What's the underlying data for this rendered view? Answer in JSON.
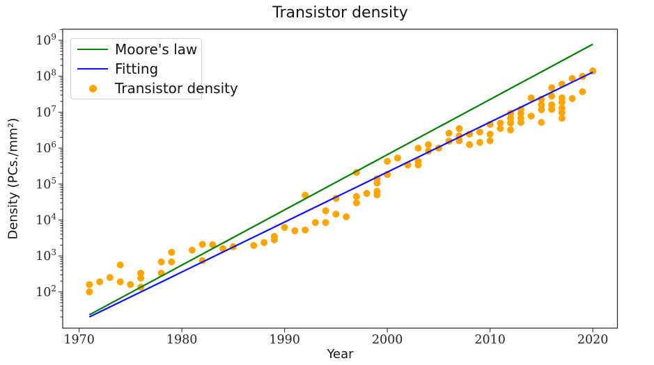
{
  "figure": {
    "title": "Transistor density",
    "xlabel": "Year",
    "ylabel": "Density (PCs./mm²)"
  },
  "legend": {
    "items": [
      {
        "label": "Moore's law",
        "type": "line",
        "color": "#008000"
      },
      {
        "label": "Fitting",
        "type": "line",
        "color": "#0f0fff"
      },
      {
        "label": "Transistor density",
        "type": "dot",
        "color": "#ffa500"
      }
    ]
  },
  "chart_data": {
    "type": "scatter",
    "title": "Transistor density",
    "xlabel": "Year",
    "ylabel": "Density (PCs./mm²)",
    "grid": false,
    "legend_position": "upper-left",
    "x_axis": {
      "ticks": [
        1970,
        1980,
        1990,
        2000,
        2010,
        2020
      ],
      "range": [
        1968.4,
        2022.4
      ]
    },
    "y_axis": {
      "scale": "log",
      "tick_exponents": [
        2,
        3,
        4,
        5,
        6,
        7,
        8,
        9
      ],
      "range_exponents": [
        0.99,
        9.31
      ]
    },
    "series": [
      {
        "name": "Moore's law",
        "id": "moores-law",
        "type": "line",
        "color": "#008000",
        "points": [
          [
            1971,
            23
          ],
          [
            2020,
            780000000
          ]
        ]
      },
      {
        "name": "Fitting",
        "id": "fitting",
        "type": "line",
        "color": "#0f0fff",
        "points": [
          [
            1971,
            20
          ],
          [
            2020,
            130000000
          ]
        ]
      },
      {
        "name": "Transistor density",
        "id": "transistor-density",
        "type": "scatter",
        "color": "#ffa500",
        "points": [
          [
            1971,
            100
          ],
          [
            1971,
            160
          ],
          [
            1972,
            190
          ],
          [
            1973,
            250
          ],
          [
            1974,
            560
          ],
          [
            1974,
            190
          ],
          [
            1975,
            160
          ],
          [
            1976,
            330
          ],
          [
            1976,
            240
          ],
          [
            1976,
            135
          ],
          [
            1978,
            330
          ],
          [
            1978,
            680
          ],
          [
            1979,
            1260
          ],
          [
            1979,
            680
          ],
          [
            1981,
            1450
          ],
          [
            1982,
            2100
          ],
          [
            1982,
            740
          ],
          [
            1983,
            2050
          ],
          [
            1984,
            1600
          ],
          [
            1985,
            1800
          ],
          [
            1987,
            1950
          ],
          [
            1988,
            2350
          ],
          [
            1989,
            3500
          ],
          [
            1989,
            2800
          ],
          [
            1990,
            6200
          ],
          [
            1991,
            5000
          ],
          [
            1992,
            5250
          ],
          [
            1992,
            49000
          ],
          [
            1993,
            8500
          ],
          [
            1994,
            18000
          ],
          [
            1994,
            8500
          ],
          [
            1995,
            14500
          ],
          [
            1995,
            40000
          ],
          [
            1996,
            12300
          ],
          [
            1997,
            45000
          ],
          [
            1997,
            30000
          ],
          [
            1997,
            210000
          ],
          [
            1998,
            55000
          ],
          [
            1999,
            140000
          ],
          [
            1999,
            107000
          ],
          [
            1999,
            63000
          ],
          [
            1999,
            50000
          ],
          [
            2000,
            430000
          ],
          [
            2000,
            185000
          ],
          [
            2001,
            530000
          ],
          [
            2002,
            340000
          ],
          [
            2003,
            430000
          ],
          [
            2003,
            340000
          ],
          [
            2003,
            1000000
          ],
          [
            2004,
            1250000
          ],
          [
            2004,
            830000
          ],
          [
            2005,
            1000000
          ],
          [
            2006,
            2600000
          ],
          [
            2006,
            1560000
          ],
          [
            2007,
            3500000
          ],
          [
            2007,
            2200000
          ],
          [
            2007,
            1600000
          ],
          [
            2008,
            2450000
          ],
          [
            2008,
            1250000
          ],
          [
            2009,
            2800000
          ],
          [
            2009,
            1440000
          ],
          [
            2010,
            4600000
          ],
          [
            2010,
            2450000
          ],
          [
            2010,
            1600000
          ],
          [
            2011,
            5000000
          ],
          [
            2011,
            3500000
          ],
          [
            2012,
            9300000
          ],
          [
            2012,
            6800000
          ],
          [
            2012,
            5000000
          ],
          [
            2012,
            3200000
          ],
          [
            2013,
            12000000
          ],
          [
            2013,
            9300000
          ],
          [
            2013,
            6800000
          ],
          [
            2013,
            5200000
          ],
          [
            2014,
            25000000
          ],
          [
            2014,
            7800000
          ],
          [
            2015,
            23000000
          ],
          [
            2015,
            16000000
          ],
          [
            2015,
            11700000
          ],
          [
            2015,
            5200000
          ],
          [
            2016,
            48000000
          ],
          [
            2016,
            28000000
          ],
          [
            2016,
            16000000
          ],
          [
            2016,
            12000000
          ],
          [
            2017,
            60000000
          ],
          [
            2017,
            25000000
          ],
          [
            2017,
            19000000
          ],
          [
            2017,
            13000000
          ],
          [
            2017,
            9800000
          ],
          [
            2017,
            6800000
          ],
          [
            2018,
            87000000
          ],
          [
            2018,
            24000000
          ],
          [
            2019,
            99000000
          ],
          [
            2019,
            37000000
          ],
          [
            2020,
            140000000
          ]
        ]
      }
    ]
  }
}
